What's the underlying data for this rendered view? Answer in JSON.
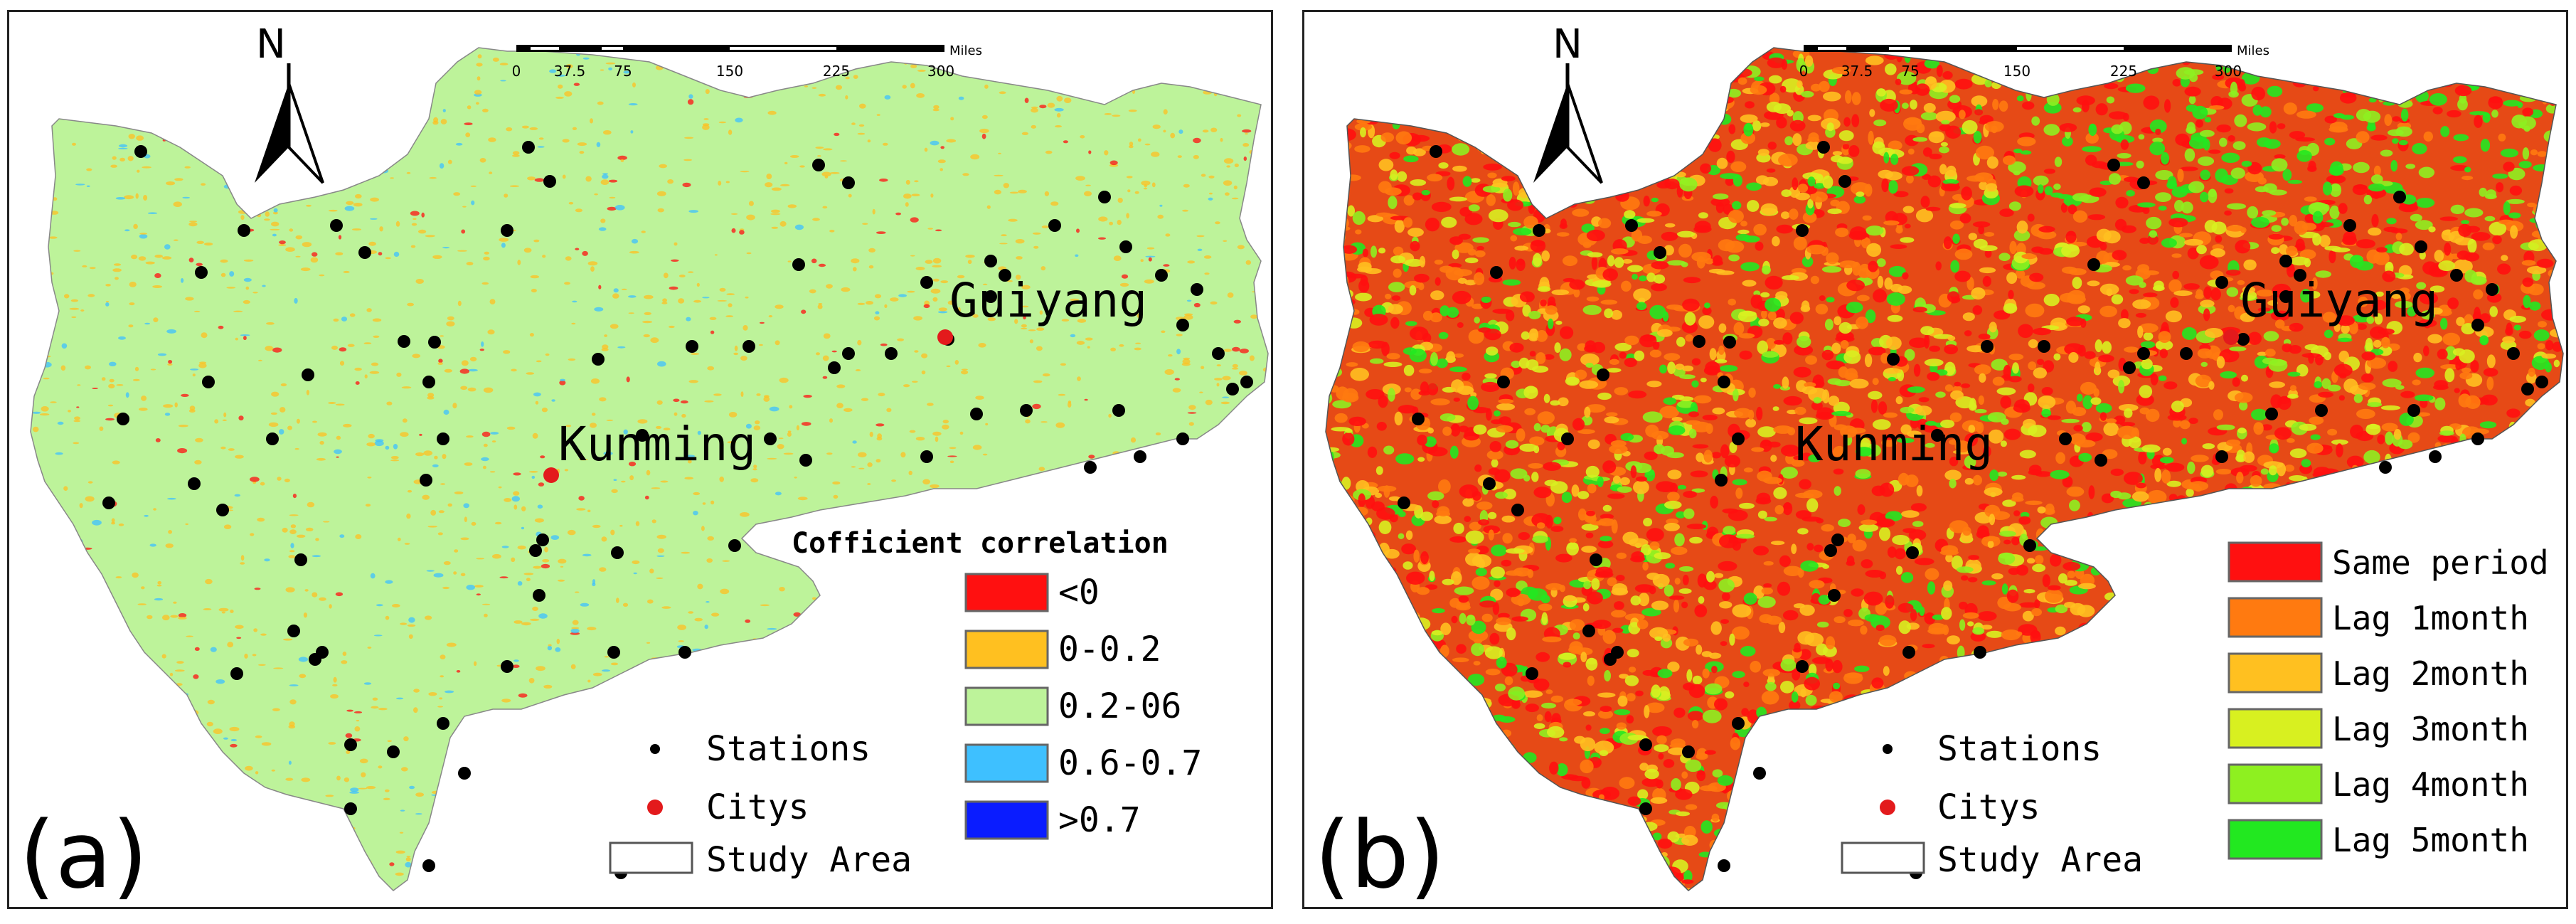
{
  "colors": {
    "outline": "#222222",
    "station": "#000000",
    "city": "#e31a1c",
    "a_base": "#bdf39a",
    "b_base": "#e64a16"
  },
  "panels": [
    {
      "label": "(a)",
      "north": "N",
      "scale": {
        "unit": "Miles",
        "ticks": [
          "0",
          "37.5",
          "75",
          "150",
          "225",
          "300"
        ]
      },
      "cities": [
        {
          "name": "Kunming"
        },
        {
          "name": "Guiyang"
        }
      ],
      "legend": {
        "title": "Cofficient correlation",
        "items": [
          {
            "label": "<0",
            "color": "#ff1010"
          },
          {
            "label": "0-0.2",
            "color": "#ffc020"
          },
          {
            "label": "0.2-06",
            "color": "#bdf39a"
          },
          {
            "label": "0.6-0.7",
            "color": "#3ec0ff"
          },
          {
            "label": ">0.7",
            "color": "#0a1cff"
          }
        ]
      },
      "symbols": {
        "stations": "Stations",
        "citys": "Citys",
        "area": "Study Area"
      }
    },
    {
      "label": "(b)",
      "north": "N",
      "scale": {
        "unit": "Miles",
        "ticks": [
          "0",
          "37.5",
          "75",
          "150",
          "225",
          "300"
        ]
      },
      "cities": [
        {
          "name": "Kunming"
        },
        {
          "name": "Guiyang"
        }
      ],
      "legend": {
        "title": "",
        "items": [
          {
            "label": "Same period",
            "color": "#ff1010"
          },
          {
            "label": "Lag 1month",
            "color": "#ff7a10"
          },
          {
            "label": "Lag 2month",
            "color": "#ffc020"
          },
          {
            "label": "Lag 3month",
            "color": "#d8f020"
          },
          {
            "label": "Lag 4month",
            "color": "#8ef020"
          },
          {
            "label": "Lag 5month",
            "color": "#22e820"
          }
        ]
      },
      "symbols": {
        "stations": "Stations",
        "citys": "Citys",
        "area": "Study Area"
      }
    }
  ]
}
